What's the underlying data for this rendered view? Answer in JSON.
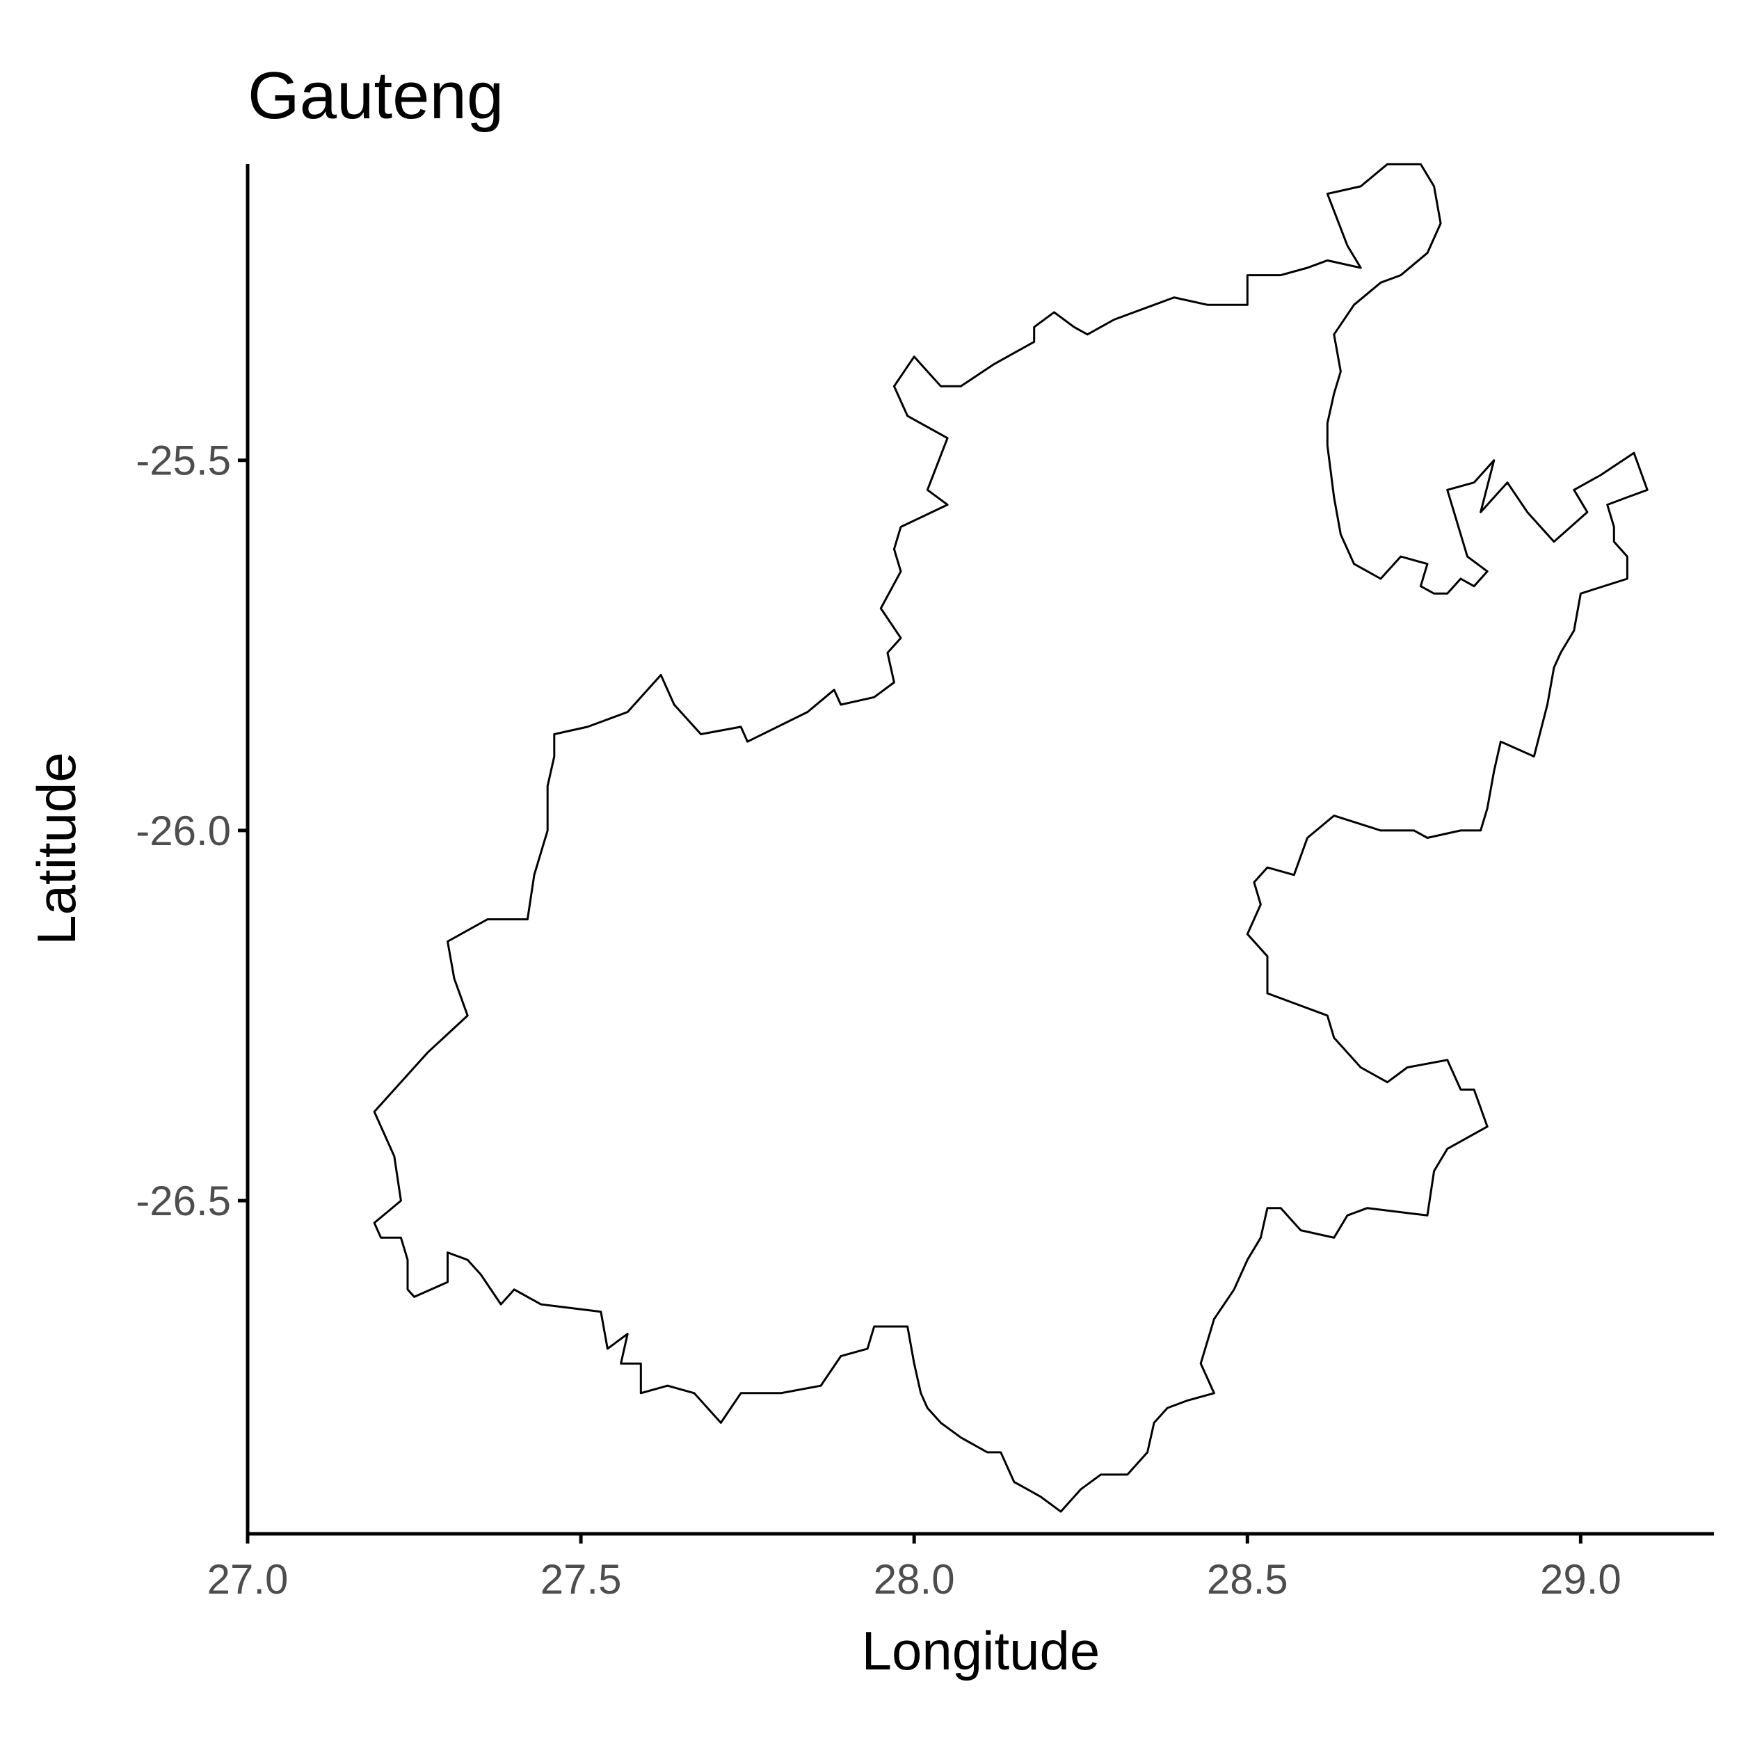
{
  "chart_data": {
    "type": "map",
    "title": "Gauteng",
    "xlabel": "Longitude",
    "ylabel": "Latitude",
    "xlim": [
      27.0,
      29.2
    ],
    "ylim": [
      -26.95,
      -25.1
    ],
    "x_ticks": [
      {
        "value": 27.0,
        "label": "27.0"
      },
      {
        "value": 27.5,
        "label": "27.5"
      },
      {
        "value": 28.0,
        "label": "28.0"
      },
      {
        "value": 28.5,
        "label": "28.5"
      },
      {
        "value": 29.0,
        "label": "29.0"
      }
    ],
    "y_ticks": [
      {
        "value": -25.5,
        "label": "-25.5"
      },
      {
        "value": -26.0,
        "label": "-26.0"
      },
      {
        "value": -26.5,
        "label": "-26.5"
      }
    ],
    "grid": false,
    "legend": "none",
    "boundary_color": "#000000",
    "region": {
      "name": "Gauteng",
      "outline": [
        [
          27.19,
          -26.53
        ],
        [
          27.2,
          -26.55
        ],
        [
          27.23,
          -26.55
        ],
        [
          27.24,
          -26.58
        ],
        [
          27.24,
          -26.62
        ],
        [
          27.25,
          -26.63
        ],
        [
          27.3,
          -26.61
        ],
        [
          27.3,
          -26.57
        ],
        [
          27.33,
          -26.58
        ],
        [
          27.35,
          -26.6
        ],
        [
          27.38,
          -26.64
        ],
        [
          27.4,
          -26.62
        ],
        [
          27.44,
          -26.64
        ],
        [
          27.53,
          -26.65
        ],
        [
          27.54,
          -26.7
        ],
        [
          27.57,
          -26.68
        ],
        [
          27.56,
          -26.72
        ],
        [
          27.59,
          -26.72
        ],
        [
          27.59,
          -26.76
        ],
        [
          27.63,
          -26.75
        ],
        [
          27.67,
          -26.76
        ],
        [
          27.71,
          -26.8
        ],
        [
          27.74,
          -26.76
        ],
        [
          27.8,
          -26.76
        ],
        [
          27.86,
          -26.75
        ],
        [
          27.89,
          -26.71
        ],
        [
          27.93,
          -26.7
        ],
        [
          27.94,
          -26.67
        ],
        [
          27.96,
          -26.67
        ],
        [
          27.99,
          -26.67
        ],
        [
          28.0,
          -26.72
        ],
        [
          28.01,
          -26.76
        ],
        [
          28.02,
          -26.78
        ],
        [
          28.04,
          -26.8
        ],
        [
          28.07,
          -26.82
        ],
        [
          28.11,
          -26.84
        ],
        [
          28.13,
          -26.84
        ],
        [
          28.15,
          -26.88
        ],
        [
          28.17,
          -26.89
        ],
        [
          28.19,
          -26.9
        ],
        [
          28.22,
          -26.92
        ],
        [
          28.25,
          -26.89
        ],
        [
          28.28,
          -26.87
        ],
        [
          28.32,
          -26.87
        ],
        [
          28.35,
          -26.84
        ],
        [
          28.36,
          -26.8
        ],
        [
          28.38,
          -26.78
        ],
        [
          28.41,
          -26.77
        ],
        [
          28.45,
          -26.76
        ],
        [
          28.43,
          -26.72
        ],
        [
          28.45,
          -26.66
        ],
        [
          28.48,
          -26.62
        ],
        [
          28.5,
          -26.58
        ],
        [
          28.52,
          -26.55
        ],
        [
          28.53,
          -26.51
        ],
        [
          28.55,
          -26.51
        ],
        [
          28.58,
          -26.54
        ],
        [
          28.63,
          -26.55
        ],
        [
          28.65,
          -26.52
        ],
        [
          28.68,
          -26.51
        ],
        [
          28.77,
          -26.52
        ],
        [
          28.78,
          -26.46
        ],
        [
          28.8,
          -26.43
        ],
        [
          28.86,
          -26.4
        ],
        [
          28.84,
          -26.35
        ],
        [
          28.82,
          -26.35
        ],
        [
          28.8,
          -26.31
        ],
        [
          28.74,
          -26.32
        ],
        [
          28.71,
          -26.34
        ],
        [
          28.67,
          -26.32
        ],
        [
          28.63,
          -26.28
        ],
        [
          28.62,
          -26.25
        ],
        [
          28.53,
          -26.22
        ],
        [
          28.53,
          -26.17
        ],
        [
          28.5,
          -26.14
        ],
        [
          28.52,
          -26.1
        ],
        [
          28.51,
          -26.07
        ],
        [
          28.53,
          -26.05
        ],
        [
          28.57,
          -26.06
        ],
        [
          28.59,
          -26.01
        ],
        [
          28.63,
          -25.98
        ],
        [
          28.7,
          -26.0
        ],
        [
          28.75,
          -26.0
        ],
        [
          28.77,
          -26.01
        ],
        [
          28.82,
          -26.0
        ],
        [
          28.85,
          -26.0
        ],
        [
          28.86,
          -25.97
        ],
        [
          28.87,
          -25.92
        ],
        [
          28.88,
          -25.88
        ],
        [
          28.93,
          -25.9
        ],
        [
          28.95,
          -25.83
        ],
        [
          28.96,
          -25.78
        ],
        [
          28.97,
          -25.76
        ],
        [
          28.99,
          -25.73
        ],
        [
          29.0,
          -25.68
        ],
        [
          29.07,
          -25.66
        ],
        [
          29.07,
          -25.63
        ],
        [
          29.05,
          -25.61
        ],
        [
          29.05,
          -25.59
        ],
        [
          29.04,
          -25.56
        ],
        [
          29.07,
          -25.55
        ],
        [
          29.1,
          -25.54
        ],
        [
          29.08,
          -25.49
        ],
        [
          29.03,
          -25.52
        ],
        [
          28.99,
          -25.54
        ],
        [
          29.01,
          -25.57
        ],
        [
          28.96,
          -25.61
        ],
        [
          28.92,
          -25.57
        ],
        [
          28.89,
          -25.53
        ],
        [
          28.85,
          -25.57
        ],
        [
          28.87,
          -25.5
        ],
        [
          28.84,
          -25.53
        ],
        [
          28.8,
          -25.54
        ],
        [
          28.81,
          -25.57
        ],
        [
          28.83,
          -25.63
        ],
        [
          28.86,
          -25.65
        ],
        [
          28.84,
          -25.67
        ],
        [
          28.82,
          -25.66
        ],
        [
          28.8,
          -25.68
        ],
        [
          28.78,
          -25.68
        ],
        [
          28.76,
          -25.67
        ],
        [
          28.77,
          -25.64
        ],
        [
          28.73,
          -25.63
        ],
        [
          28.7,
          -25.66
        ],
        [
          28.66,
          -25.64
        ],
        [
          28.64,
          -25.6
        ],
        [
          28.63,
          -25.55
        ],
        [
          28.62,
          -25.48
        ],
        [
          28.62,
          -25.45
        ],
        [
          28.63,
          -25.41
        ],
        [
          28.64,
          -25.38
        ],
        [
          28.63,
          -25.33
        ],
        [
          28.66,
          -25.29
        ],
        [
          28.7,
          -25.26
        ],
        [
          28.73,
          -25.25
        ],
        [
          28.77,
          -25.22
        ],
        [
          28.79,
          -25.18
        ],
        [
          28.78,
          -25.13
        ],
        [
          28.76,
          -25.1
        ],
        [
          28.71,
          -25.1
        ],
        [
          28.67,
          -25.13
        ],
        [
          28.62,
          -25.14
        ],
        [
          28.65,
          -25.21
        ],
        [
          28.67,
          -25.24
        ],
        [
          28.62,
          -25.23
        ],
        [
          28.59,
          -25.24
        ],
        [
          28.55,
          -25.25
        ],
        [
          28.5,
          -25.25
        ],
        [
          28.5,
          -25.29
        ],
        [
          28.44,
          -25.29
        ],
        [
          28.39,
          -25.28
        ],
        [
          28.3,
          -25.31
        ],
        [
          28.26,
          -25.33
        ],
        [
          28.24,
          -25.32
        ],
        [
          28.21,
          -25.3
        ],
        [
          28.18,
          -25.32
        ],
        [
          28.18,
          -25.34
        ],
        [
          28.12,
          -25.37
        ],
        [
          28.07,
          -25.4
        ],
        [
          28.04,
          -25.4
        ],
        [
          28.0,
          -25.36
        ],
        [
          27.97,
          -25.4
        ],
        [
          27.99,
          -25.44
        ],
        [
          28.05,
          -25.47
        ],
        [
          28.02,
          -25.54
        ],
        [
          28.05,
          -25.56
        ],
        [
          27.98,
          -25.59
        ],
        [
          27.97,
          -25.62
        ],
        [
          27.98,
          -25.65
        ],
        [
          27.95,
          -25.7
        ],
        [
          27.98,
          -25.74
        ],
        [
          27.96,
          -25.76
        ],
        [
          27.97,
          -25.8
        ],
        [
          27.94,
          -25.82
        ],
        [
          27.89,
          -25.83
        ],
        [
          27.88,
          -25.81
        ],
        [
          27.84,
          -25.84
        ],
        [
          27.75,
          -25.88
        ],
        [
          27.74,
          -25.86
        ],
        [
          27.68,
          -25.87
        ],
        [
          27.64,
          -25.83
        ],
        [
          27.62,
          -25.79
        ],
        [
          27.57,
          -25.84
        ],
        [
          27.51,
          -25.86
        ],
        [
          27.46,
          -25.87
        ],
        [
          27.46,
          -25.9
        ],
        [
          27.45,
          -25.94
        ],
        [
          27.45,
          -26.0
        ],
        [
          27.43,
          -26.06
        ],
        [
          27.42,
          -26.12
        ],
        [
          27.36,
          -26.12
        ],
        [
          27.3,
          -26.15
        ],
        [
          27.31,
          -26.2
        ],
        [
          27.33,
          -26.25
        ],
        [
          27.27,
          -26.3
        ],
        [
          27.24,
          -26.33
        ],
        [
          27.19,
          -26.38
        ],
        [
          27.22,
          -26.44
        ],
        [
          27.23,
          -26.5
        ],
        [
          27.19,
          -26.53
        ]
      ]
    }
  }
}
